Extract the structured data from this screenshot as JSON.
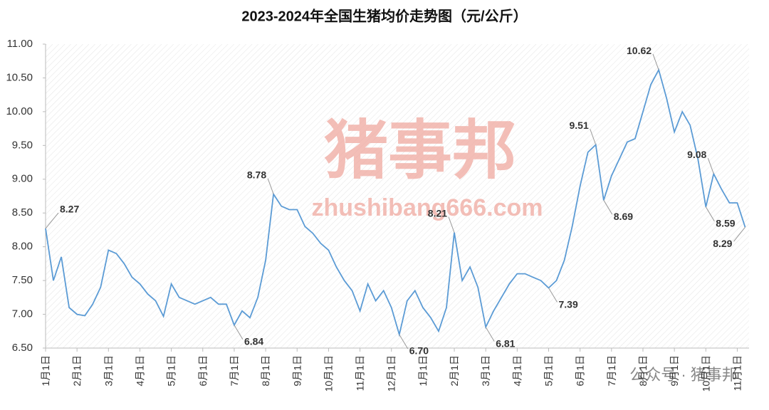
{
  "chart_data": {
    "type": "line",
    "title": "2023-2024年全国生猪均价走势图（元/公斤）",
    "categories": [
      "1月1日",
      null,
      null,
      null,
      "2月1日",
      null,
      null,
      null,
      "3月1日",
      null,
      null,
      null,
      "4月1日",
      null,
      null,
      null,
      "5月1日",
      null,
      null,
      null,
      "6月1日",
      null,
      null,
      null,
      "7月1日",
      null,
      null,
      null,
      "8月1日",
      null,
      null,
      null,
      "9月1日",
      null,
      null,
      null,
      "10月1日",
      null,
      null,
      null,
      "11月1日",
      null,
      null,
      null,
      "12月1日",
      null,
      null,
      null,
      "1月1日",
      null,
      null,
      null,
      "2月1日",
      null,
      null,
      null,
      "3月1日",
      null,
      null,
      null,
      "4月1日",
      null,
      null,
      null,
      "5月1日",
      null,
      null,
      null,
      "6月1日",
      null,
      null,
      null,
      "7月1日",
      null,
      null,
      null,
      "8月1日",
      null,
      null,
      null,
      "9月1日",
      null,
      null,
      null,
      "10月1日",
      null,
      null,
      null,
      "11月1日",
      null
    ],
    "values": [
      8.27,
      7.5,
      7.85,
      7.1,
      7.0,
      6.98,
      7.15,
      7.4,
      7.95,
      7.9,
      7.75,
      7.55,
      7.45,
      7.3,
      7.2,
      6.97,
      7.45,
      7.25,
      7.2,
      7.15,
      7.2,
      7.25,
      7.15,
      7.15,
      6.84,
      7.05,
      6.95,
      7.25,
      7.8,
      8.78,
      8.6,
      8.55,
      8.55,
      8.3,
      8.2,
      8.05,
      7.95,
      7.7,
      7.5,
      7.35,
      7.05,
      7.45,
      7.2,
      7.35,
      7.1,
      6.7,
      7.2,
      7.35,
      7.1,
      6.95,
      6.75,
      7.1,
      8.21,
      7.5,
      7.7,
      7.4,
      6.81,
      7.05,
      7.25,
      7.45,
      7.6,
      7.6,
      7.55,
      7.5,
      7.39,
      7.5,
      7.8,
      8.3,
      8.9,
      9.4,
      9.51,
      8.69,
      9.05,
      9.3,
      9.55,
      9.6,
      10.0,
      10.4,
      10.62,
      10.2,
      9.7,
      10.0,
      9.8,
      9.3,
      8.59,
      9.08,
      8.85,
      8.65,
      8.65,
      8.29
    ],
    "value_labels": [
      "8.27",
      null,
      null,
      null,
      null,
      null,
      null,
      null,
      null,
      null,
      null,
      null,
      null,
      null,
      null,
      null,
      null,
      null,
      null,
      null,
      null,
      null,
      null,
      null,
      "6.84",
      null,
      null,
      null,
      null,
      "8.78",
      null,
      null,
      null,
      null,
      null,
      null,
      null,
      null,
      null,
      null,
      null,
      null,
      null,
      null,
      null,
      "6.70",
      null,
      null,
      null,
      null,
      null,
      null,
      "8.21",
      null,
      null,
      null,
      "6.81",
      null,
      null,
      null,
      null,
      null,
      null,
      null,
      "7.39",
      null,
      null,
      null,
      null,
      null,
      "9.51",
      "8.69",
      null,
      null,
      null,
      null,
      null,
      null,
      "10.62",
      null,
      null,
      null,
      null,
      null,
      "8.59",
      "9.08",
      null,
      null,
      null,
      "8.29"
    ],
    "color": "#5b9bd5",
    "ylim": [
      6.5,
      11
    ],
    "yticks": [
      {
        "value": 6.5,
        "label": "6.50"
      },
      {
        "value": 7,
        "label": "7.00"
      },
      {
        "value": 7.5,
        "label": "7.50"
      },
      {
        "value": 8,
        "label": "8.00"
      },
      {
        "value": 8.5,
        "label": "8.50"
      },
      {
        "value": 9,
        "label": "9.00"
      },
      {
        "value": 9.5,
        "label": "9.50"
      },
      {
        "value": 10,
        "label": "10.00"
      },
      {
        "value": 10.5,
        "label": "10.50"
      },
      {
        "value": 11,
        "label": "11.00"
      }
    ],
    "watermark": "猪事邦",
    "watermark_url": "zhushibang666.com",
    "source": "公众号 · 猪事邦"
  }
}
